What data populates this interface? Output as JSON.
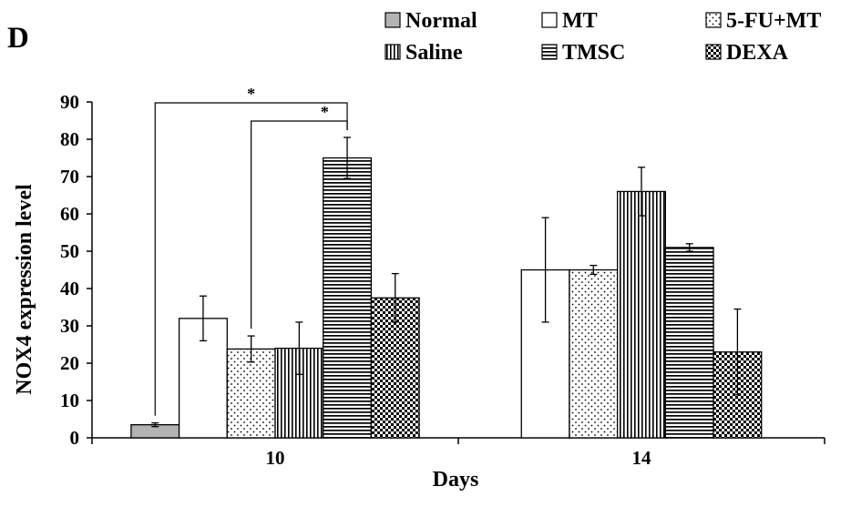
{
  "panel_label": "D",
  "chart_data": {
    "type": "bar",
    "title": "",
    "xlabel": "Days",
    "ylabel": "NOX4 expression level",
    "ylim": [
      0,
      90
    ],
    "yticks": [
      "0",
      "10",
      "20",
      "30",
      "40",
      "50",
      "60",
      "70",
      "80",
      "90"
    ],
    "categories": [
      "10",
      "14"
    ],
    "legend_position": "top",
    "grid": false,
    "series": [
      {
        "name": "Normal",
        "pattern": "gray-solid",
        "values": [
          3.5,
          null
        ],
        "errors": [
          0.5,
          null
        ]
      },
      {
        "name": "MT",
        "pattern": "white-solid",
        "values": [
          32,
          45
        ],
        "errors": [
          6,
          14
        ]
      },
      {
        "name": "5-FU+MT",
        "pattern": "dots",
        "values": [
          23.8,
          45
        ],
        "errors": [
          3.5,
          1.2
        ]
      },
      {
        "name": "Saline",
        "pattern": "vertical-lines",
        "values": [
          24,
          66
        ],
        "errors": [
          7,
          6.5
        ]
      },
      {
        "name": "TMSC",
        "pattern": "horizontal-lines",
        "values": [
          75,
          51
        ],
        "errors": [
          5.5,
          1
        ]
      },
      {
        "name": "DEXA",
        "pattern": "checkerboard",
        "values": [
          37.5,
          23
        ],
        "errors": [
          6.5,
          11.5
        ]
      }
    ],
    "annotations": [
      {
        "text": "*",
        "from_series": "Normal",
        "to_series": "TMSC",
        "category": "10"
      },
      {
        "text": "*",
        "from_series": "5-FU+MT",
        "to_series": "TMSC",
        "category": "10"
      }
    ],
    "colors": {
      "normal_fill": "#b3b3b3",
      "stroke": "#000000"
    }
  }
}
